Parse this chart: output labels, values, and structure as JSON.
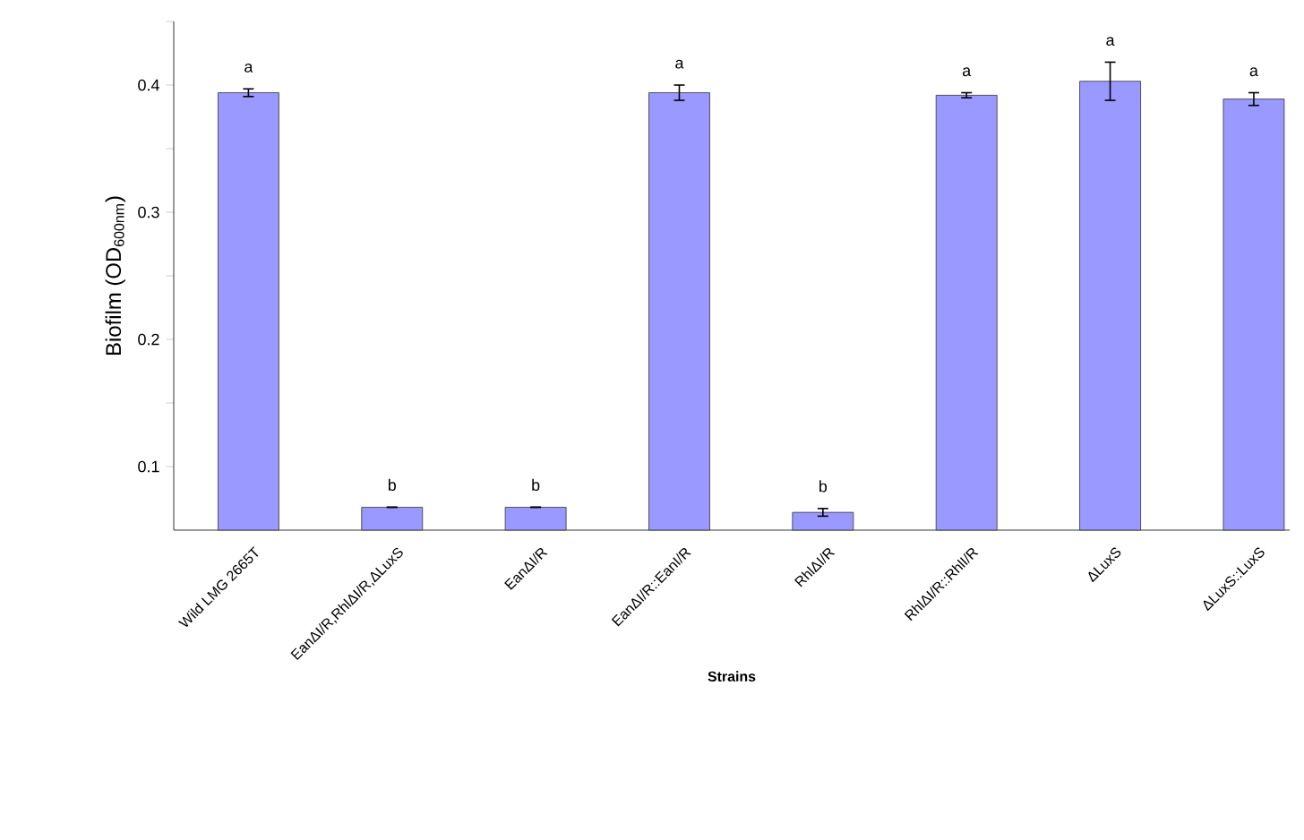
{
  "chart_data": {
    "type": "bar",
    "xlabel": "**Strains**",
    "ylabel": "Biofilm (OD$_{600nm}$)",
    "categories": [
      "Wild LMG 2665T",
      "EanΔI/R,RhlΔI/R,ΔLuxS",
      "EanΔI/R",
      "EanΔI/R::EanI/R",
      "RhlΔI/R",
      "RhlΔI/R::RhlI/R",
      "ΔLuxS",
      "ΔLuxS::LuxS"
    ],
    "values": [
      0.394,
      0.068,
      0.068,
      0.394,
      0.064,
      0.392,
      0.403,
      0.389
    ],
    "errors": [
      0.003,
      null,
      null,
      0.006,
      0.003,
      0.002,
      0.015,
      0.005
    ],
    "color": "#9999ff",
    "ylim": [
      0.05,
      0.45
    ],
    "yticks": [
      0.1,
      {
        "value": 0.15,
        "label": null
      },
      0.2,
      {
        "value": 0.25,
        "label": null
      },
      0.3,
      {
        "value": 0.35,
        "label": null
      },
      0.4,
      {
        "value": 0.45,
        "label": null
      }
    ],
    "annotations": [
      "a",
      "b",
      "b",
      "a",
      "b",
      "a",
      "a",
      "a"
    ]
  }
}
